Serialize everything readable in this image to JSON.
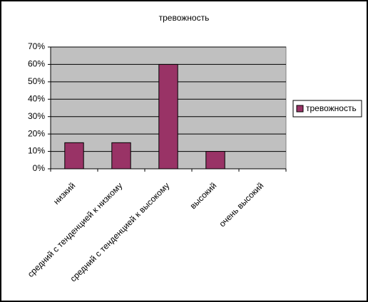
{
  "chart_data": {
    "type": "bar",
    "title": "тревожность",
    "categories": [
      "низкий",
      "средний с тенденцией к низкому",
      "средний с тенденцией к высокому",
      "высокий",
      "очень высокий"
    ],
    "series": [
      {
        "name": "тревожность",
        "color": "#993366",
        "values": [
          15,
          15,
          60,
          10,
          0
        ]
      }
    ],
    "ylim": [
      0,
      70
    ],
    "yticks": [
      {
        "value": 0,
        "label": "0%"
      },
      {
        "value": 10,
        "label": "10%"
      },
      {
        "value": 20,
        "label": "20%"
      },
      {
        "value": 30,
        "label": "30%"
      },
      {
        "value": 40,
        "label": "40%"
      },
      {
        "value": 50,
        "label": "50%"
      },
      {
        "value": 60,
        "label": "60%"
      },
      {
        "value": 70,
        "label": "70%"
      }
    ],
    "grid": true,
    "legend": "right"
  }
}
